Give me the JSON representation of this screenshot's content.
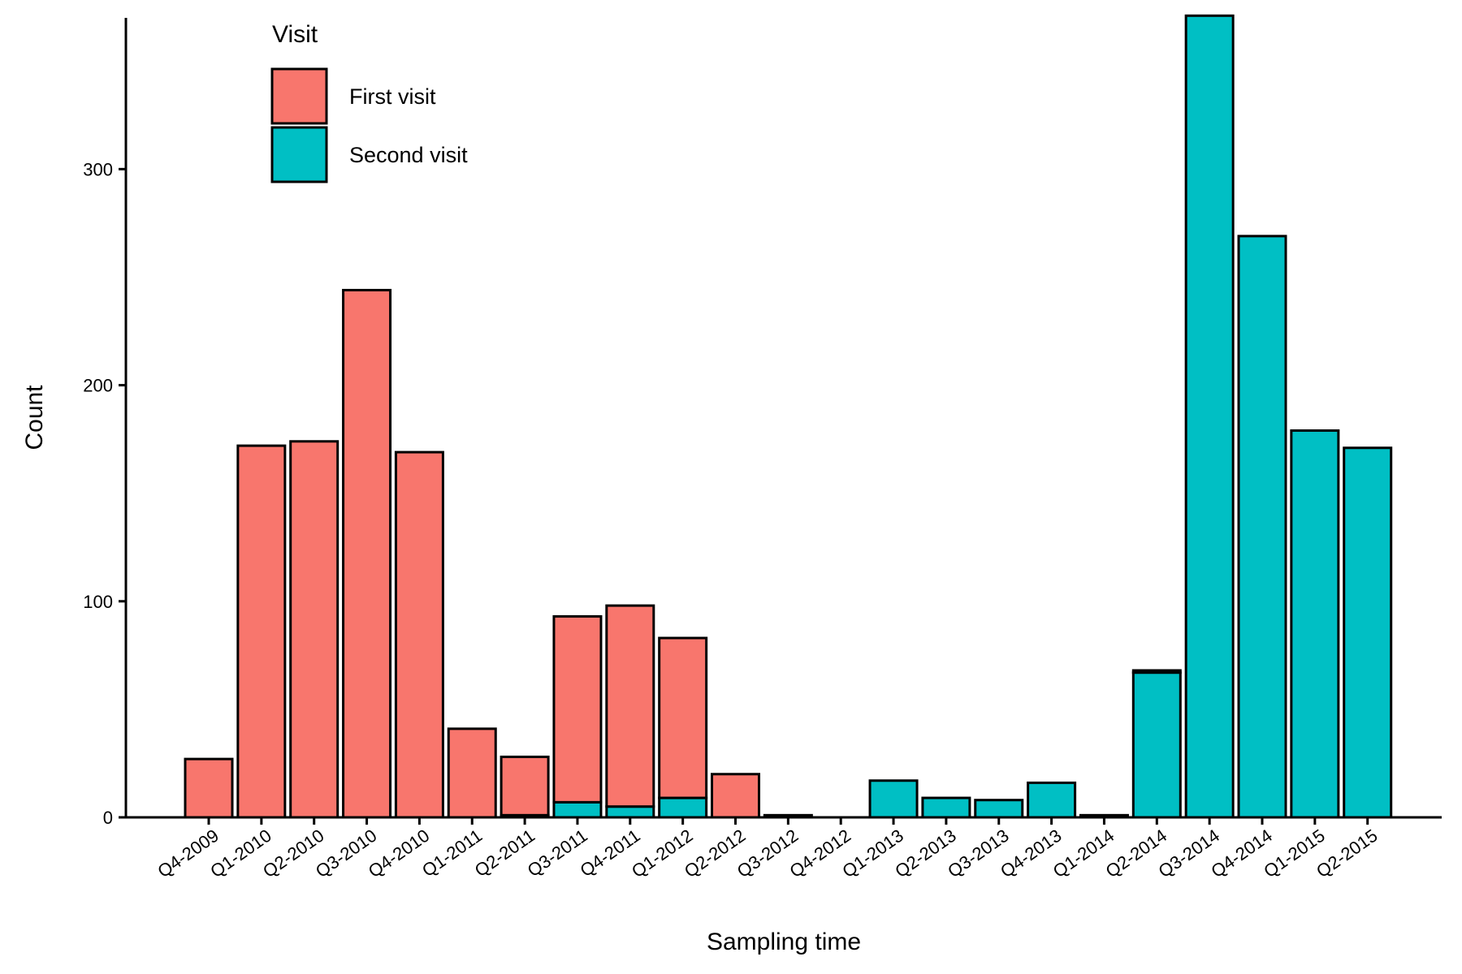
{
  "chart_data": {
    "type": "bar",
    "stacked": true,
    "xlabel": "Sampling time",
    "ylabel": "Count",
    "ylim": [
      0,
      370
    ],
    "yticks": [
      0,
      100,
      200,
      300
    ],
    "grid": false,
    "legend_position": "top-left",
    "legend": {
      "title": "Visit",
      "items": [
        {
          "name": "First visit",
          "color": "#F8766D"
        },
        {
          "name": "Second visit",
          "color": "#00BFC4"
        }
      ]
    },
    "categories": [
      "Q4-2009",
      "Q1-2010",
      "Q2-2010",
      "Q3-2010",
      "Q4-2010",
      "Q1-2011",
      "Q2-2011",
      "Q3-2011",
      "Q4-2011",
      "Q1-2012",
      "Q2-2012",
      "Q3-2012",
      "Q4-2012",
      "Q1-2013",
      "Q2-2013",
      "Q3-2013",
      "Q4-2013",
      "Q1-2014",
      "Q2-2014",
      "Q3-2014",
      "Q4-2014",
      "Q1-2015",
      "Q2-2015"
    ],
    "series": [
      {
        "name": "Second visit",
        "color": "#00BFC4",
        "values": [
          0,
          0,
          0,
          0,
          0,
          0,
          1,
          7,
          5,
          9,
          0,
          0,
          0,
          17,
          9,
          8,
          16,
          0,
          67,
          371,
          269,
          179,
          171
        ]
      },
      {
        "name": "First visit",
        "color": "#F8766D",
        "values": [
          27,
          172,
          174,
          244,
          169,
          41,
          27,
          86,
          93,
          74,
          20,
          1,
          0,
          0,
          0,
          0,
          0,
          1,
          1,
          0,
          0,
          0,
          0
        ]
      }
    ]
  }
}
